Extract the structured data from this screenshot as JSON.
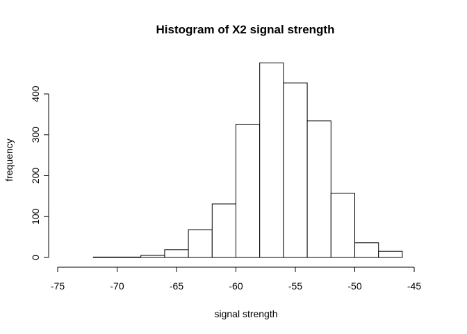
{
  "chart_data": {
    "type": "bar",
    "title": "Histogram of X2 signal strength",
    "xlabel": "signal strength",
    "ylabel": "frequency",
    "xlim": [
      -75,
      -45
    ],
    "ylim": [
      0,
      480
    ],
    "bin_width": 2,
    "bins": [
      {
        "x0": -74,
        "x1": -72,
        "count": 0
      },
      {
        "x0": -72,
        "x1": -70,
        "count": 1
      },
      {
        "x0": -70,
        "x1": -68,
        "count": 1
      },
      {
        "x0": -68,
        "x1": -66,
        "count": 5
      },
      {
        "x0": -66,
        "x1": -64,
        "count": 19
      },
      {
        "x0": -64,
        "x1": -62,
        "count": 68
      },
      {
        "x0": -62,
        "x1": -60,
        "count": 131
      },
      {
        "x0": -60,
        "x1": -58,
        "count": 326
      },
      {
        "x0": -58,
        "x1": -56,
        "count": 476
      },
      {
        "x0": -56,
        "x1": -54,
        "count": 427
      },
      {
        "x0": -54,
        "x1": -52,
        "count": 334
      },
      {
        "x0": -52,
        "x1": -50,
        "count": 157
      },
      {
        "x0": -50,
        "x1": -48,
        "count": 36
      },
      {
        "x0": -48,
        "x1": -46,
        "count": 15
      }
    ],
    "x_ticks": [
      "-75",
      "-70",
      "-65",
      "-60",
      "-55",
      "-50",
      "-45"
    ],
    "y_ticks": [
      "0",
      "100",
      "200",
      "300",
      "400"
    ],
    "grid": false,
    "legend": "none"
  }
}
